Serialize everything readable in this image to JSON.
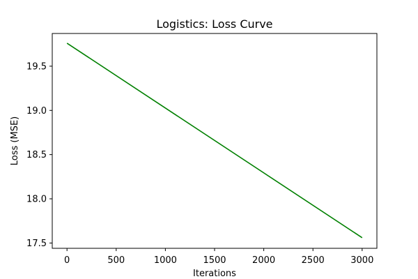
{
  "chart_data": {
    "type": "line",
    "title": "Logistics: Loss Curve",
    "xlabel": "Iterations",
    "ylabel": "Loss (MSE)",
    "xlim": [
      -150,
      3150
    ],
    "ylim": [
      17.44,
      19.87
    ],
    "xticks": [
      0,
      500,
      1000,
      1500,
      2000,
      2500,
      3000
    ],
    "xtick_labels": [
      "0",
      "500",
      "1000",
      "1500",
      "2000",
      "2500",
      "3000"
    ],
    "yticks": [
      17.5,
      18.0,
      18.5,
      19.0,
      19.5
    ],
    "ytick_labels": [
      "17.5",
      "18.0",
      "18.5",
      "19.0",
      "19.5"
    ],
    "grid": false,
    "series": [
      {
        "color": "#008000",
        "x": [
          0,
          3000
        ],
        "y": [
          19.76,
          17.56
        ]
      }
    ]
  }
}
